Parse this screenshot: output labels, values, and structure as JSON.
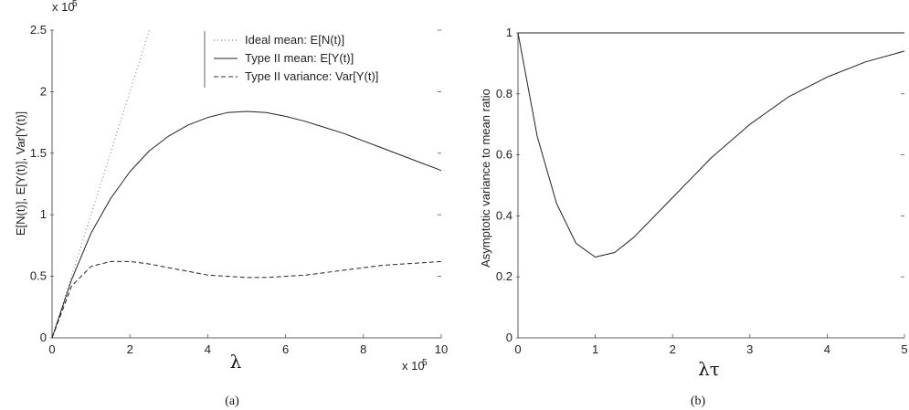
{
  "chart_data": [
    {
      "panel_caption": "(a)",
      "type": "line",
      "xlabel": "λ",
      "ylabel": "E[N(t)], E[Y(t)], Var[Y(t)]",
      "x_multiplier": "x 10",
      "y_multiplier": "x 10",
      "exponent": "5",
      "xlim": [
        0,
        10
      ],
      "ylim": [
        0,
        2.5
      ],
      "xticks": [
        "0",
        "2",
        "4",
        "6",
        "8",
        "10"
      ],
      "yticks": [
        "0",
        "0.5",
        "1",
        "1.5",
        "2",
        "2.5"
      ],
      "legend_position": "top-right",
      "series": [
        {
          "name": "Ideal mean: E[N(t)]",
          "style": "dotted",
          "x": [
            0,
            0.5,
            1.0,
            1.5,
            2.0,
            2.5
          ],
          "y": [
            0,
            0.5,
            1.0,
            1.5,
            2.0,
            2.5
          ]
        },
        {
          "name": "Type II mean: E[Y(t)]",
          "style": "solid",
          "x": [
            0,
            0.5,
            1,
            1.5,
            2,
            2.5,
            3,
            3.5,
            4,
            4.5,
            5,
            5.5,
            6,
            6.5,
            7,
            7.5,
            8,
            8.5,
            9,
            9.5,
            10
          ],
          "y": [
            0,
            0.47,
            0.85,
            1.13,
            1.35,
            1.52,
            1.64,
            1.73,
            1.79,
            1.83,
            1.84,
            1.83,
            1.8,
            1.76,
            1.71,
            1.66,
            1.6,
            1.54,
            1.48,
            1.42,
            1.36
          ]
        },
        {
          "name": "Type II variance: Var[Y(t)]",
          "style": "dashed",
          "x": [
            0,
            0.5,
            1,
            1.5,
            2,
            2.5,
            3,
            3.5,
            4,
            4.5,
            5,
            5.5,
            6,
            6.5,
            7,
            7.5,
            8,
            8.5,
            9,
            9.5,
            10
          ],
          "y": [
            0,
            0.42,
            0.58,
            0.62,
            0.62,
            0.6,
            0.57,
            0.54,
            0.51,
            0.5,
            0.49,
            0.49,
            0.5,
            0.51,
            0.53,
            0.55,
            0.57,
            0.59,
            0.6,
            0.61,
            0.62
          ]
        }
      ]
    },
    {
      "panel_caption": "(b)",
      "type": "line",
      "xlabel": "λτ",
      "ylabel": "Asymptotic variance to mean ratio",
      "xlim": [
        0,
        5
      ],
      "ylim": [
        0,
        1
      ],
      "xticks": [
        "0",
        "1",
        "2",
        "3",
        "4",
        "5"
      ],
      "yticks": [
        "0",
        "0.2",
        "0.4",
        "0.6",
        "0.8",
        "1"
      ],
      "series": [
        {
          "name": "",
          "style": "solid",
          "x": [
            0,
            0.25,
            0.5,
            0.75,
            1.0,
            1.25,
            1.5,
            2.0,
            2.5,
            3.0,
            3.5,
            4.0,
            4.5,
            5.0
          ],
          "y": [
            1.0,
            0.66,
            0.44,
            0.31,
            0.265,
            0.28,
            0.33,
            0.46,
            0.59,
            0.7,
            0.79,
            0.855,
            0.905,
            0.94
          ]
        },
        {
          "name": "",
          "style": "solid",
          "x": [
            0,
            5
          ],
          "y": [
            1,
            1
          ]
        }
      ]
    }
  ]
}
